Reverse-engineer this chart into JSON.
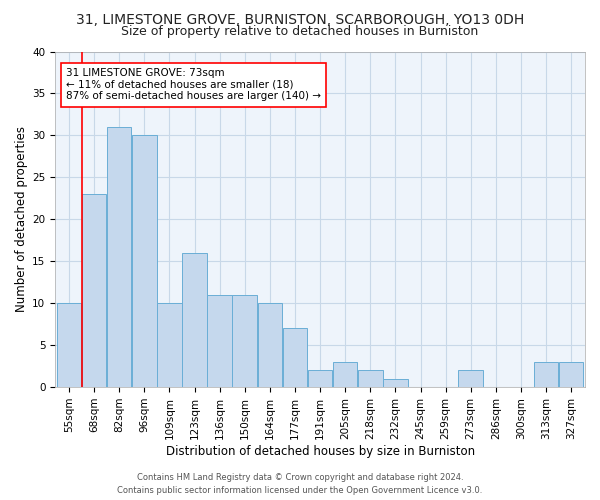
{
  "title": "31, LIMESTONE GROVE, BURNISTON, SCARBOROUGH, YO13 0DH",
  "subtitle": "Size of property relative to detached houses in Burniston",
  "xlabel": "Distribution of detached houses by size in Burniston",
  "ylabel": "Number of detached properties",
  "footer_line1": "Contains HM Land Registry data © Crown copyright and database right 2024.",
  "footer_line2": "Contains public sector information licensed under the Open Government Licence v3.0.",
  "bin_labels": [
    "55sqm",
    "68sqm",
    "82sqm",
    "96sqm",
    "109sqm",
    "123sqm",
    "136sqm",
    "150sqm",
    "164sqm",
    "177sqm",
    "191sqm",
    "205sqm",
    "218sqm",
    "232sqm",
    "245sqm",
    "259sqm",
    "273sqm",
    "286sqm",
    "300sqm",
    "313sqm",
    "327sqm"
  ],
  "bar_values": [
    10,
    23,
    31,
    30,
    10,
    16,
    11,
    11,
    10,
    7,
    2,
    3,
    2,
    1,
    0,
    0,
    2,
    0,
    0,
    3,
    3
  ],
  "bar_color": "#c5d8ed",
  "bar_edgecolor": "#6aaed6",
  "grid_color": "#c8d8e8",
  "background_color": "#eef4fb",
  "annotation_line1": "31 LIMESTONE GROVE: 73sqm",
  "annotation_line2": "← 11% of detached houses are smaller (18)",
  "annotation_line3": "87% of semi-detached houses are larger (140) →",
  "subject_bar_index": 1,
  "ylim": [
    0,
    40
  ],
  "yticks": [
    0,
    5,
    10,
    15,
    20,
    25,
    30,
    35,
    40
  ],
  "title_fontsize": 10,
  "subtitle_fontsize": 9,
  "ylabel_fontsize": 8.5,
  "xlabel_fontsize": 8.5,
  "tick_fontsize": 7.5,
  "annotation_fontsize": 7.5,
  "footer_fontsize": 6.0
}
